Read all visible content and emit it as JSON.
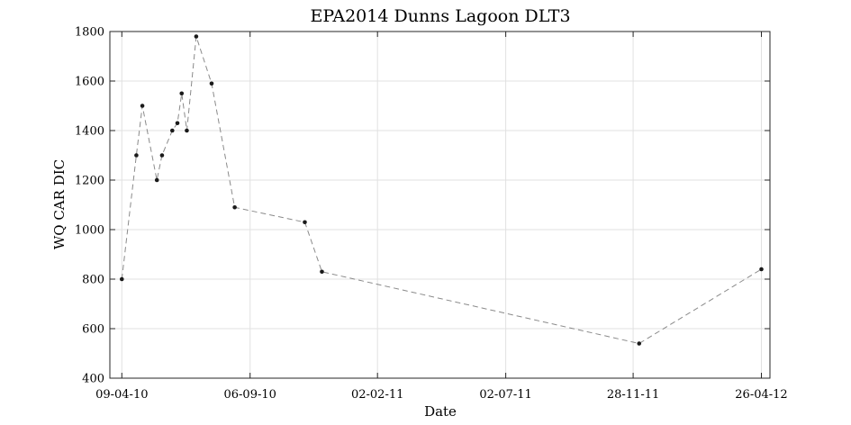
{
  "chart_data": {
    "type": "line",
    "title": "EPA2014 Dunns Lagoon DLT3",
    "xlabel": "Date",
    "ylabel": "WQ CAR DIC",
    "x_axis": {
      "scale": "date",
      "range": [
        "2010-03-26",
        "2012-05-06"
      ],
      "ticks": [
        {
          "date": "2010-04-09",
          "label": "09-04-10"
        },
        {
          "date": "2010-09-06",
          "label": "06-09-10"
        },
        {
          "date": "2011-02-02",
          "label": "02-02-11"
        },
        {
          "date": "2011-07-02",
          "label": "02-07-11"
        },
        {
          "date": "2011-11-28",
          "label": "28-11-11"
        },
        {
          "date": "2012-04-26",
          "label": "26-04-12"
        }
      ]
    },
    "y_axis": {
      "range": [
        400,
        1800
      ],
      "ticks": [
        400,
        600,
        800,
        1000,
        1200,
        1400,
        1600,
        1800
      ],
      "tick_labels": [
        "400",
        "600",
        "800",
        "1000",
        "1200",
        "1400",
        "1600",
        "1800"
      ]
    },
    "grid": true,
    "series": [
      {
        "style": "dashed line with dot markers",
        "line_color": "#8a8a8a",
        "marker_color": "#1a1a1a",
        "points": [
          {
            "x": "2010-04-09",
            "y": 800
          },
          {
            "x": "2010-04-26",
            "y": 1300
          },
          {
            "x": "2010-05-03",
            "y": 1500
          },
          {
            "x": "2010-05-20",
            "y": 1200
          },
          {
            "x": "2010-05-26",
            "y": 1300
          },
          {
            "x": "2010-06-07",
            "y": 1400
          },
          {
            "x": "2010-06-13",
            "y": 1430
          },
          {
            "x": "2010-06-18",
            "y": 1550
          },
          {
            "x": "2010-06-24",
            "y": 1400
          },
          {
            "x": "2010-07-05",
            "y": 1780
          },
          {
            "x": "2010-07-23",
            "y": 1590
          },
          {
            "x": "2010-08-19",
            "y": 1090
          },
          {
            "x": "2010-11-09",
            "y": 1030
          },
          {
            "x": "2010-11-29",
            "y": 830
          },
          {
            "x": "2011-12-05",
            "y": 540
          },
          {
            "x": "2012-04-26",
            "y": 840
          }
        ]
      }
    ]
  }
}
